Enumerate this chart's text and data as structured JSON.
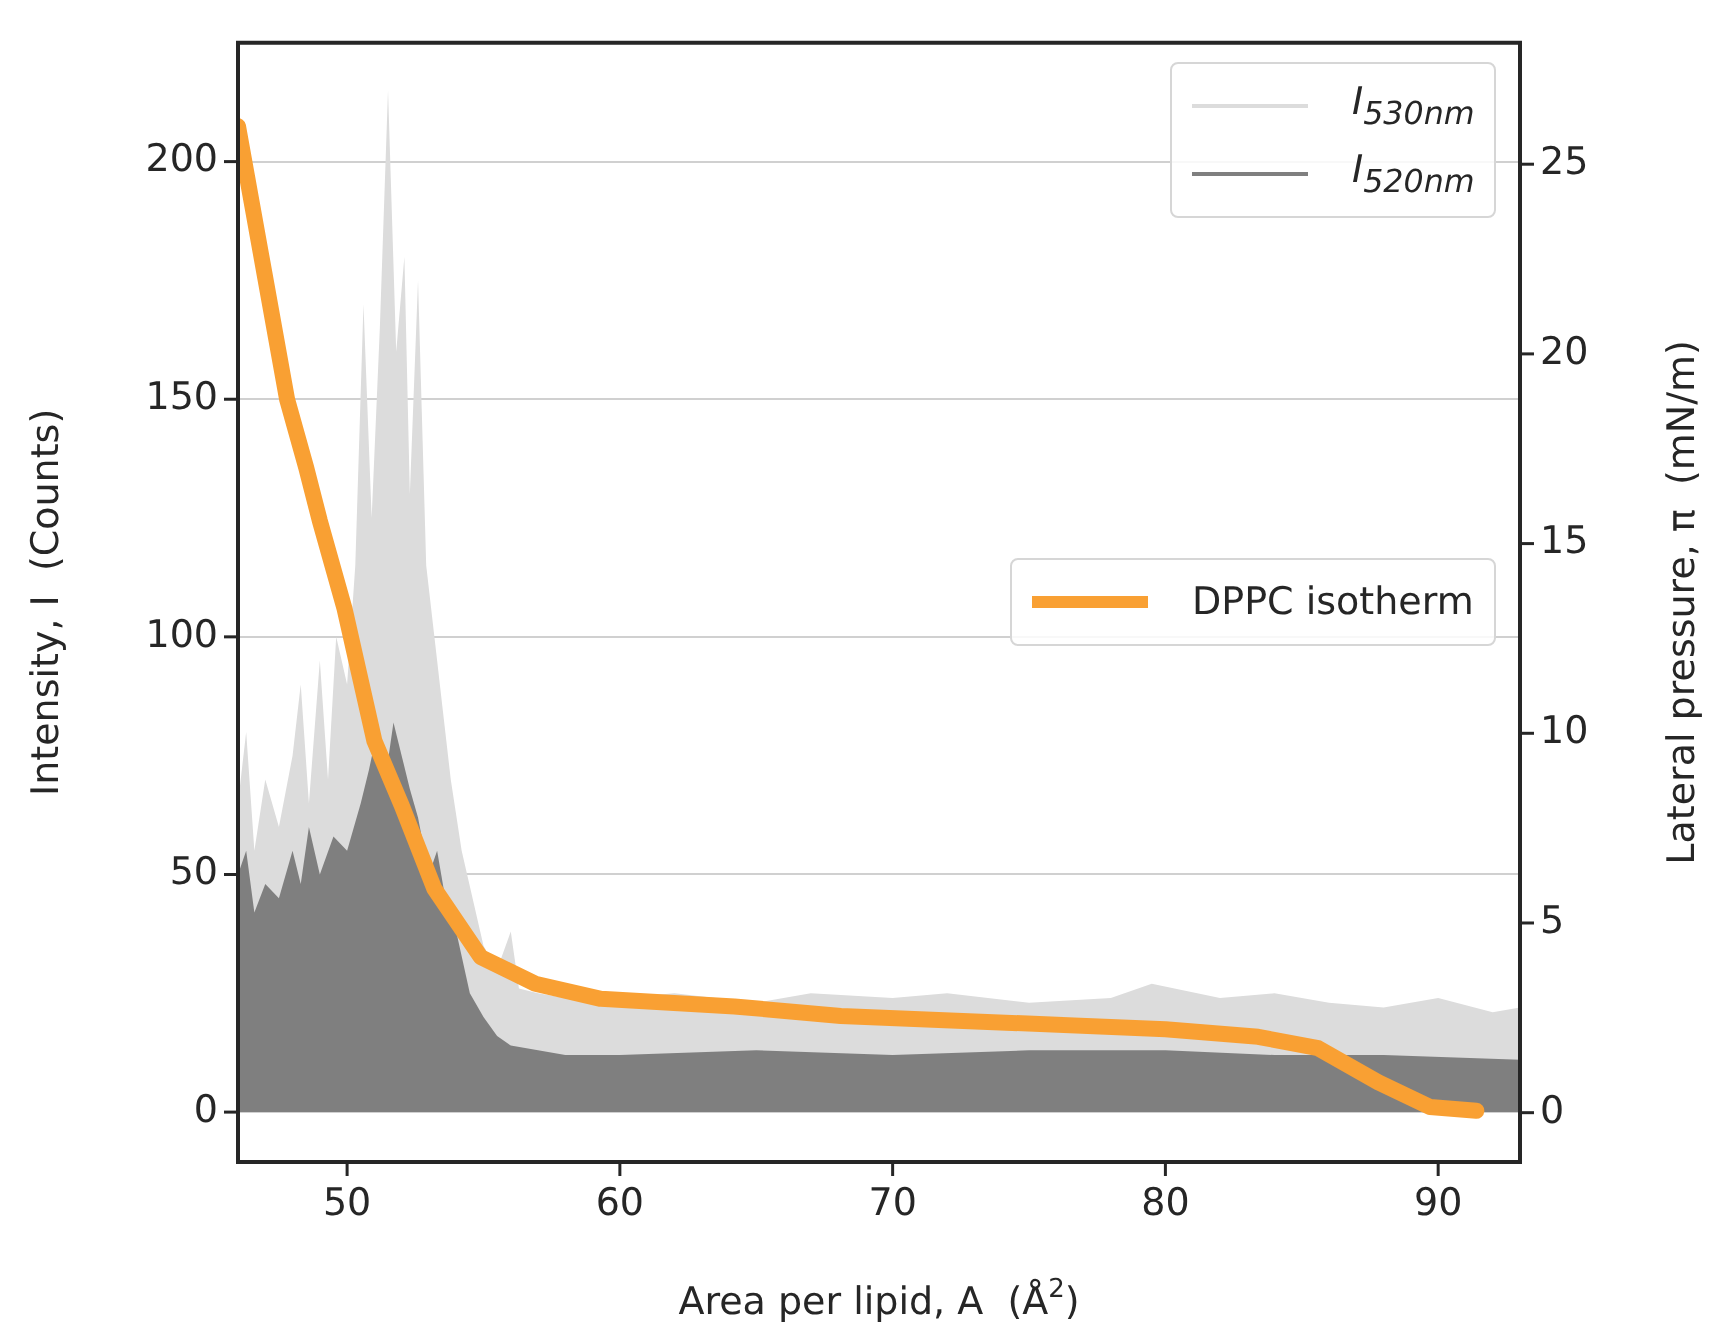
{
  "chart_data": {
    "type": "area",
    "xlabel": "Area per lipid, A  (Å$^{2}$)",
    "ylabel": "Intensity, I  (Counts)",
    "y2label": "Lateral pressure, π  (mN/m)",
    "xlim": [
      46,
      93
    ],
    "xticks": [
      50,
      60,
      70,
      80,
      90
    ],
    "ylim": [
      -10.5,
      225
    ],
    "yticks": [
      0,
      50,
      100,
      150,
      200
    ],
    "y2lim": [
      -1.3,
      28.2
    ],
    "y2ticks": [
      0,
      5,
      10,
      15,
      20,
      25
    ],
    "grid": "y",
    "legend": "top right",
    "series": [
      {
        "name": "I$_{530nm}$",
        "color": "#dcdcdc",
        "x": [
          46,
          46.3,
          46.6,
          47,
          47.5,
          48,
          48.3,
          48.6,
          49,
          49.3,
          49.6,
          50,
          50.3,
          50.6,
          50.9,
          51.2,
          51.5,
          51.8,
          52.1,
          52.3,
          52.6,
          52.9,
          53.2,
          53.5,
          53.8,
          54.2,
          54.6,
          55,
          55.5,
          56,
          56.3,
          57,
          58,
          60,
          62,
          65,
          67,
          70,
          72,
          75,
          78,
          79.5,
          82,
          84,
          86,
          88,
          90,
          92,
          93
        ],
        "values": [
          65,
          80,
          55,
          70,
          60,
          75,
          90,
          65,
          95,
          70,
          100,
          90,
          115,
          170,
          125,
          165,
          215,
          160,
          180,
          130,
          175,
          115,
          100,
          85,
          70,
          55,
          45,
          35,
          30,
          38,
          26,
          25,
          24,
          24,
          25,
          23,
          25,
          24,
          25,
          23,
          24,
          27,
          24,
          25,
          23,
          22,
          24,
          21,
          22
        ]
      },
      {
        "name": "I$_{520nm}$",
        "color": "#7f7f7f",
        "x": [
          46,
          46.3,
          46.6,
          47,
          47.5,
          48,
          48.3,
          48.6,
          49,
          49.5,
          50,
          50.5,
          50.8,
          51.1,
          51.4,
          51.7,
          52,
          52.3,
          52.6,
          53,
          53.3,
          53.6,
          54,
          54.5,
          55,
          55.5,
          56,
          57,
          58,
          60,
          65,
          70,
          75,
          80,
          84,
          88,
          93
        ],
        "values": [
          50,
          55,
          42,
          48,
          45,
          55,
          48,
          60,
          50,
          58,
          55,
          65,
          72,
          80,
          70,
          82,
          75,
          68,
          62,
          50,
          55,
          45,
          38,
          25,
          20,
          16,
          14,
          13,
          12,
          12,
          13,
          12,
          13,
          13,
          12,
          12,
          11
        ]
      },
      {
        "name": "DPPC isotherm",
        "type": "line",
        "axis": "y2",
        "color": "#f9a033",
        "x": [
          46,
          46.5,
          47,
          47.8,
          48.5,
          49,
          49.9,
          51,
          52,
          53.2,
          54.9,
          56.9,
          59.3,
          64.2,
          68.1,
          80,
          83.4,
          85.6,
          87.8,
          89.7,
          91.4
        ],
        "values": [
          26,
          24,
          22,
          18.8,
          17,
          15.6,
          13.3,
          9.8,
          8.1,
          5.9,
          4.1,
          3.4,
          3,
          2.8,
          2.55,
          2.2,
          2,
          1.7,
          0.8,
          0.15,
          0.05
        ]
      }
    ]
  }
}
